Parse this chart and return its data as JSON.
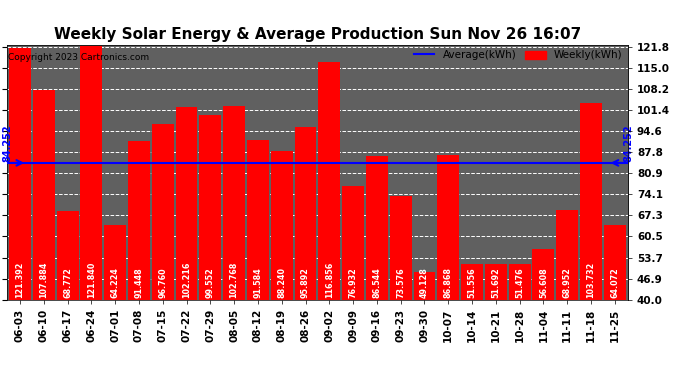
{
  "title": "Weekly Solar Energy & Average Production Sun Nov 26 16:07",
  "copyright": "Copyright 2023 Cartronics.com",
  "legend_average": "Average(kWh)",
  "legend_weekly": "Weekly(kWh)",
  "categories": [
    "06-03",
    "06-10",
    "06-17",
    "06-24",
    "07-01",
    "07-08",
    "07-15",
    "07-22",
    "07-29",
    "08-05",
    "08-12",
    "08-19",
    "08-26",
    "09-02",
    "09-09",
    "09-16",
    "09-23",
    "09-30",
    "10-07",
    "10-14",
    "10-21",
    "10-28",
    "11-04",
    "11-11",
    "11-18",
    "11-25"
  ],
  "values": [
    121.392,
    107.884,
    68.772,
    121.84,
    64.224,
    91.448,
    96.76,
    102.216,
    99.552,
    102.768,
    91.584,
    88.24,
    95.892,
    116.856,
    76.932,
    86.544,
    73.576,
    49.128,
    86.868,
    51.556,
    51.692,
    51.476,
    56.608,
    68.952,
    103.732,
    64.072
  ],
  "average": 84.252,
  "bar_color": "#FF0000",
  "average_line_color": "#0000FF",
  "bar_text_color": "#FFFFFF",
  "background_color": "#FFFFFF",
  "plot_bg_color": "#606060",
  "grid_color": "#FFFFFF",
  "title_color": "#000000",
  "copyright_color": "#000000",
  "ymin": 40.0,
  "ymax": 121.8,
  "yticks": [
    121.8,
    115.0,
    108.2,
    101.4,
    94.6,
    87.8,
    80.9,
    74.1,
    67.3,
    60.5,
    53.7,
    46.9,
    40.0
  ],
  "title_fontsize": 11,
  "tick_fontsize": 7.5,
  "bar_label_fontsize": 5.8,
  "avg_label_fontsize": 7
}
